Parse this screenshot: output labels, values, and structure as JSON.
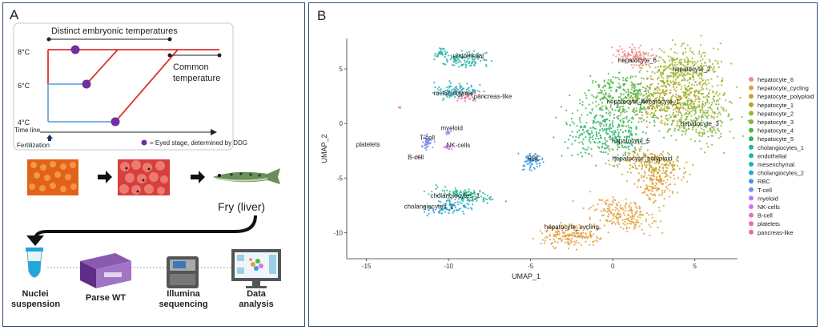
{
  "panel_a": {
    "letter": "A",
    "timeline": {
      "header": "Distinct embryonic temperatures",
      "common_label_line1": "Common",
      "common_label_line2": "temperature",
      "temps": [
        "8°C",
        "6°C",
        "4°C"
      ],
      "time_line_label": "Time line",
      "fertilization_label": "Fertilization",
      "legend_text": "= Eyed stage, determined by DDG",
      "colors": {
        "red": "#e03030",
        "blue": "#6fa8dc",
        "purple": "#7030a0",
        "navy": "#1f3864"
      }
    },
    "fry_label": "Fry (liver)",
    "workflow": [
      {
        "line1": "Nuclei",
        "line2": "suspension"
      },
      {
        "line1": "Parse WT",
        "line2": ""
      },
      {
        "line1": "Illumina",
        "line2": "sequencing"
      },
      {
        "line1": "Data",
        "line2": "analysis"
      }
    ]
  },
  "panel_b": {
    "letter": "B",
    "legend": [
      {
        "name": "hepatocyte_6",
        "color": "#f28a8a"
      },
      {
        "name": "hepatocyte_cycling",
        "color": "#e2a03a"
      },
      {
        "name": "hepatocyte_polyploid",
        "color": "#c9a227"
      },
      {
        "name": "hepatocyte_1",
        "color": "#b8a31a"
      },
      {
        "name": "hepatocyte_2",
        "color": "#9fb52a"
      },
      {
        "name": "hepatocyte_3",
        "color": "#7cb83a"
      },
      {
        "name": "hepatocyte_4",
        "color": "#4cb748"
      },
      {
        "name": "hepatocyte_5",
        "color": "#2fb56a"
      },
      {
        "name": "cholangiocytes_1",
        "color": "#22b594"
      },
      {
        "name": "endothelial",
        "color": "#1fb2a6"
      },
      {
        "name": "mesenchymal",
        "color": "#21aebd"
      },
      {
        "name": "cholangiocytes_2",
        "color": "#1fa8d4"
      },
      {
        "name": "RBC",
        "color": "#3c9be6"
      },
      {
        "name": "T-cell",
        "color": "#7a88f0"
      },
      {
        "name": "myeloid",
        "color": "#b07ef0"
      },
      {
        "name": "NK-cells",
        "color": "#d672e6"
      },
      {
        "name": "B-cell",
        "color": "#ee6cc8"
      },
      {
        "name": "platelets",
        "color": "#f06ca2"
      },
      {
        "name": "pancreas-like",
        "color": "#f0708a"
      }
    ]
  },
  "chart_data": {
    "type": "scatter",
    "xlabel": "UMAP_1",
    "ylabel": "UMAP_2",
    "xticks": [
      -15,
      -10,
      -5,
      0,
      5
    ],
    "yticks": [
      -10,
      -5,
      0,
      5
    ],
    "xlim": [
      -16.2,
      7.6
    ],
    "ylim": [
      -12.4,
      7.8
    ],
    "clusters": [
      {
        "name": "hepatocyte_6",
        "label": "hepatocyte_6",
        "x": 1.5,
        "y": 5.6
      },
      {
        "name": "hepatocyte_2",
        "label": "hepatocyte_2",
        "x": 4.8,
        "y": 4.8
      },
      {
        "name": "hepatocyte_4",
        "label": "hepatocyte_4",
        "x": 0.8,
        "y": 1.8
      },
      {
        "name": "hepatocyte_1",
        "label": "hepatocyte_1",
        "x": 2.9,
        "y": 1.8
      },
      {
        "name": "hepatocyte_3",
        "label": "hepatocyte_3",
        "x": 5.3,
        "y": -0.2
      },
      {
        "name": "hepatocyte_5",
        "label": "hepatocyte_5",
        "x": 1.1,
        "y": -1.8
      },
      {
        "name": "hepatocyte_polyploid",
        "label": "hepatocyte_polyploid",
        "x": 1.8,
        "y": -3.4
      },
      {
        "name": "hepatocyte_cycling",
        "label": "hepatocyte_cycling",
        "x": -2.5,
        "y": -9.7
      },
      {
        "name": "endothelial",
        "label": "endothelial",
        "x": -8.8,
        "y": 6.0
      },
      {
        "name": "mesenchymal",
        "label": "mesenchymal",
        "x": -9.7,
        "y": 2.6
      },
      {
        "name": "pancreas-like",
        "label": "pancreas-like",
        "x": -7.3,
        "y": 2.3
      },
      {
        "name": "myeloid",
        "label": "myeloid",
        "x": -9.8,
        "y": -0.6
      },
      {
        "name": "T-cell",
        "label": "T-cell",
        "x": -11.3,
        "y": -1.5
      },
      {
        "name": "NK-cells",
        "label": "NK-cells",
        "x": -9.4,
        "y": -2.2
      },
      {
        "name": "platelets",
        "label": "platelets",
        "x": -14.9,
        "y": -2.1
      },
      {
        "name": "B-cell",
        "label": "B-cell",
        "x": -12.0,
        "y": -3.3
      },
      {
        "name": "RBC",
        "label": "RBC",
        "x": -4.8,
        "y": -3.4
      },
      {
        "name": "cholangiocytes_1",
        "label": "cholangiocytes_1",
        "x": -9.6,
        "y": -6.8
      },
      {
        "name": "cholangiocytes_2",
        "label": "cholangiocytes_2",
        "x": -11.2,
        "y": -7.8
      }
    ]
  }
}
